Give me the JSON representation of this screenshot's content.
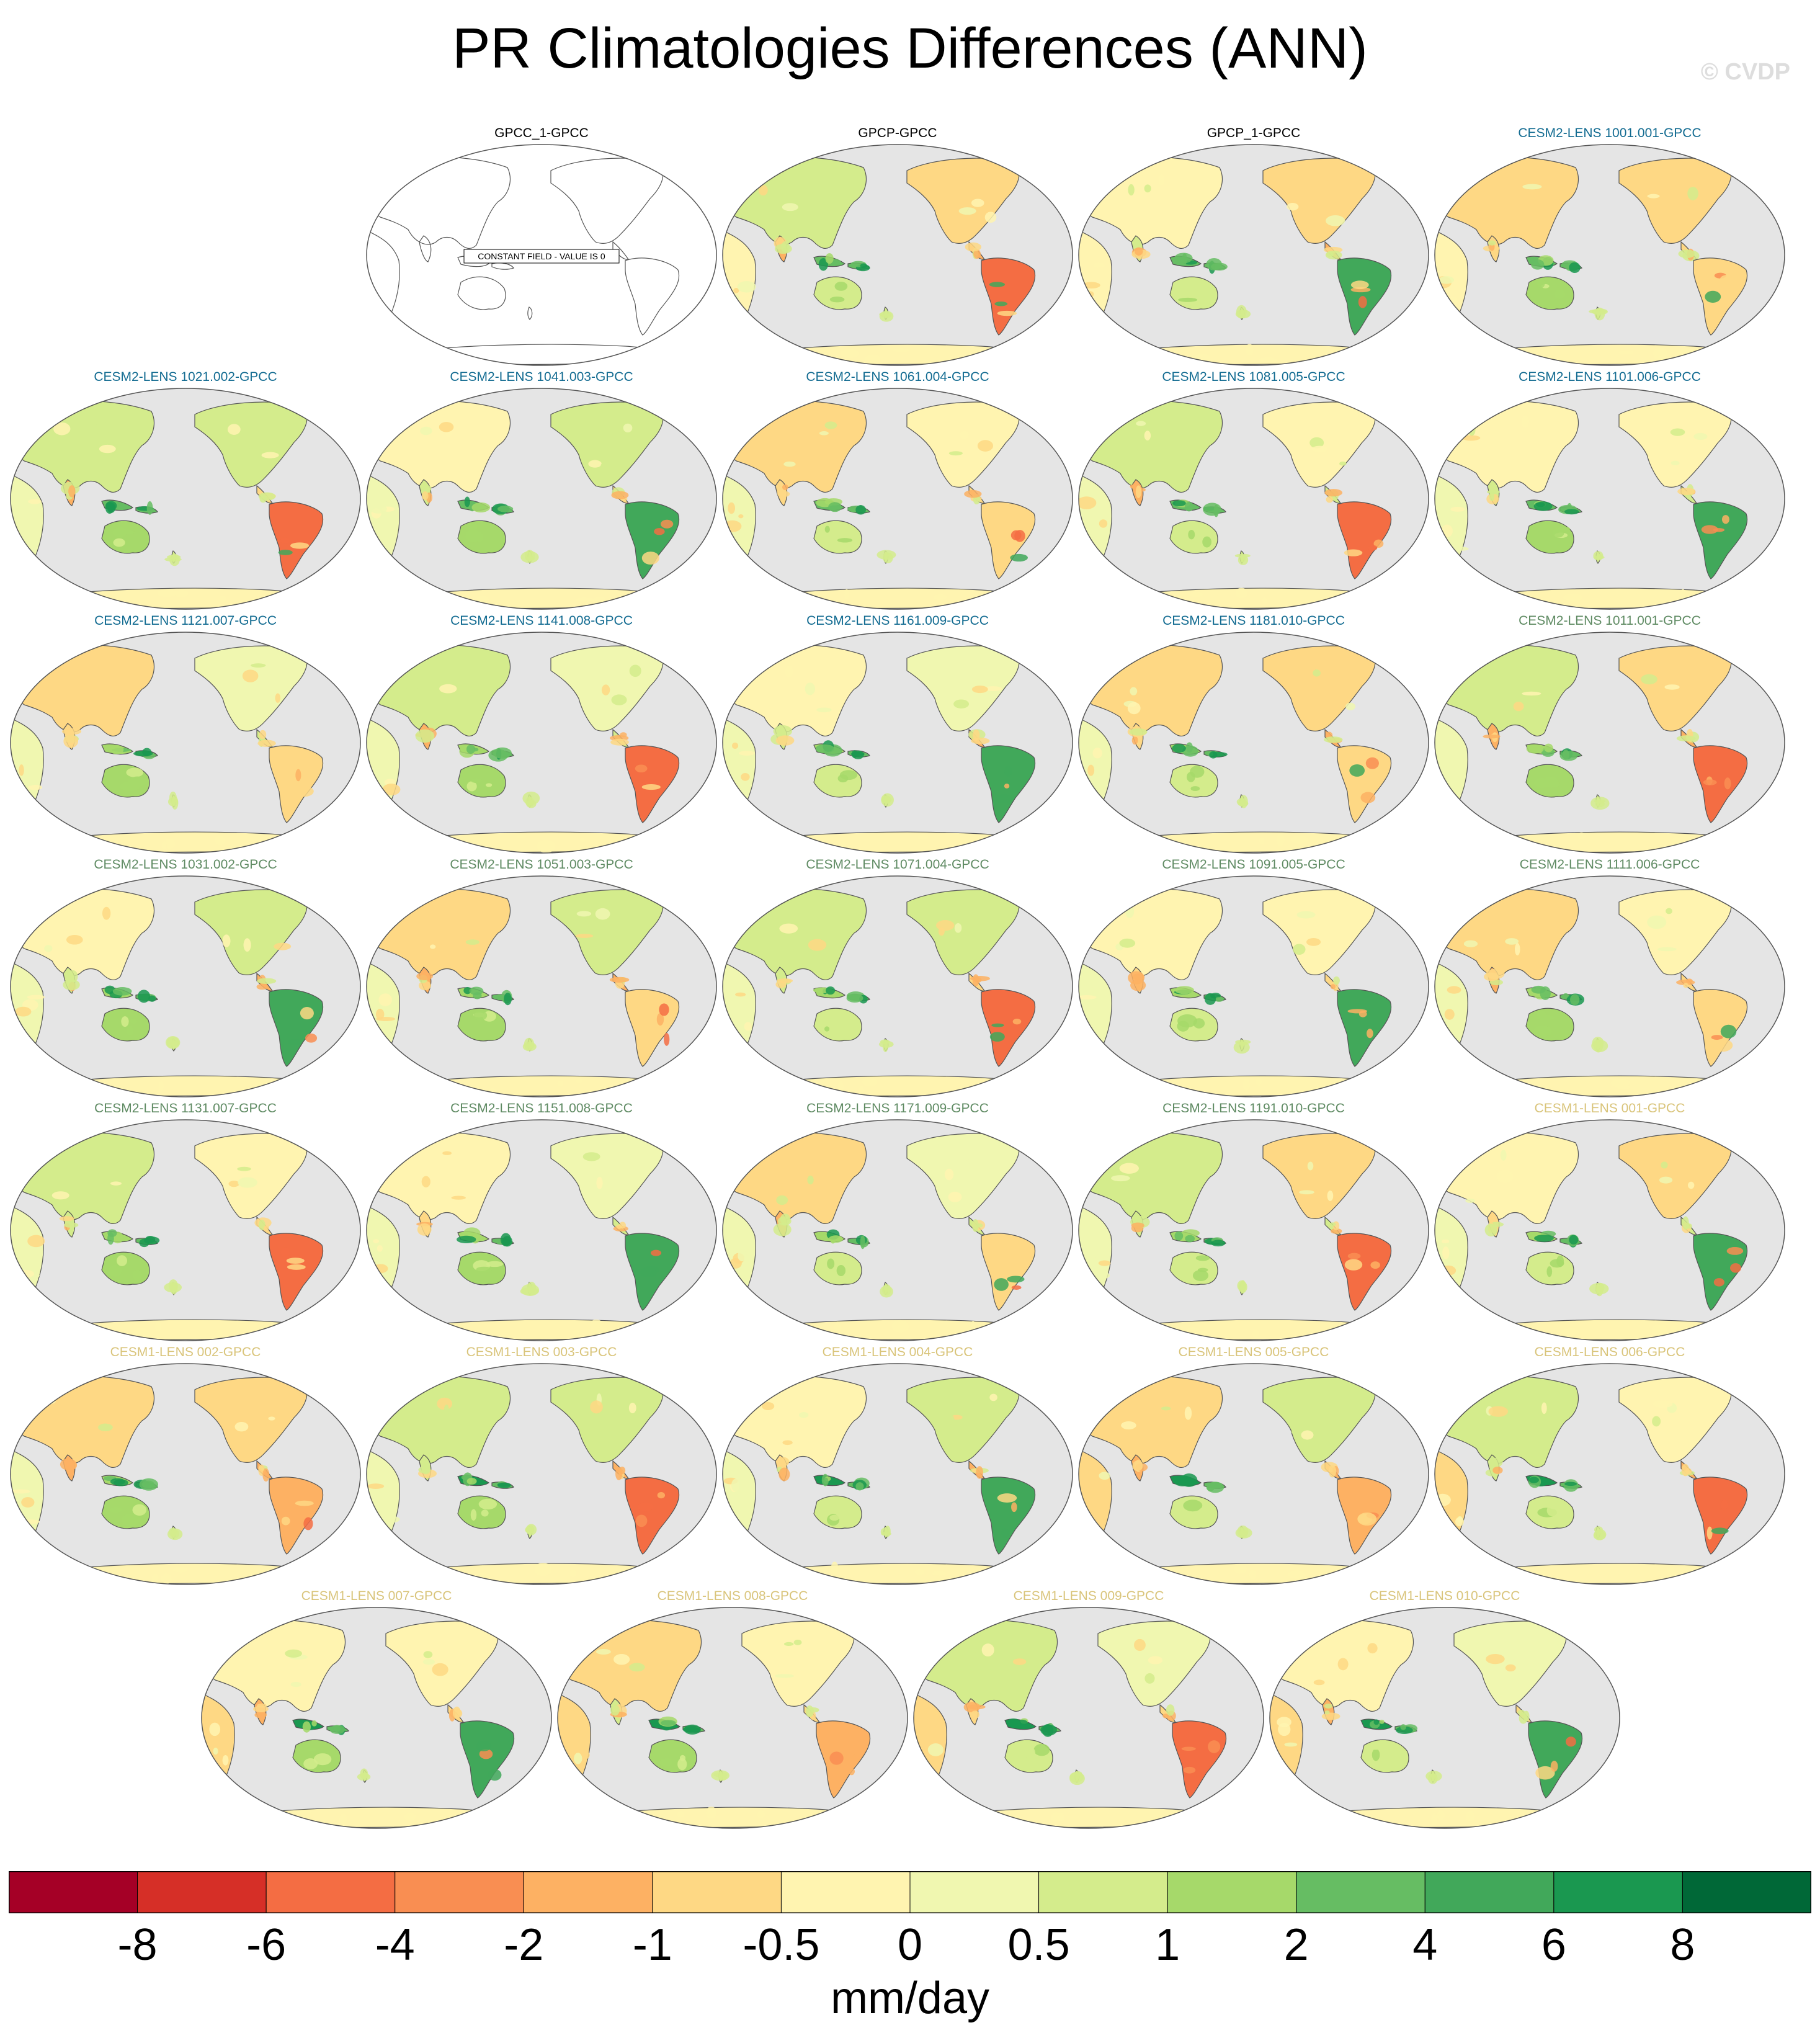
{
  "title": "PR Climatologies Differences (ANN)",
  "watermark": "© CVDP",
  "chart_data": {
    "type": "map-panel-grid",
    "title": "PR Climatologies Differences (ANN)",
    "projection": "robinson, pacific-centered",
    "colorbar": {
      "units": "mm/day",
      "levels": [
        "-8",
        "-6",
        "-4",
        "-2",
        "-1",
        "-0.5",
        "0",
        "0.5",
        "1",
        "2",
        "4",
        "6",
        "8"
      ],
      "colors": [
        "#a50026",
        "#d62f27",
        "#f46d43",
        "#f98e52",
        "#fdb163",
        "#fed884",
        "#fff4b0",
        "#f0f7b0",
        "#d4ec8c",
        "#a6d96a",
        "#66bd63",
        "#41a85a",
        "#1a9850",
        "#006837"
      ]
    },
    "group_colors": {
      "obs": "#000000",
      "cesm2_a": "#126b91",
      "cesm2_b": "#5e8a62",
      "cesm1": "#d9c47a"
    },
    "ocean_color": "#e5e5e5",
    "panels": [
      {
        "title": "GPCC_1-GPCC",
        "group": "obs",
        "constant_field": true,
        "note": "CONSTANT FIELD - VALUE IS 0"
      },
      {
        "title": "GPCP-GPCC",
        "group": "obs"
      },
      {
        "title": "GPCP_1-GPCC",
        "group": "obs"
      },
      {
        "title": "CESM2-LENS 1001.001-GPCC",
        "group": "cesm2_a"
      },
      {
        "title": "CESM2-LENS 1021.002-GPCC",
        "group": "cesm2_a"
      },
      {
        "title": "CESM2-LENS 1041.003-GPCC",
        "group": "cesm2_a"
      },
      {
        "title": "CESM2-LENS 1061.004-GPCC",
        "group": "cesm2_a"
      },
      {
        "title": "CESM2-LENS 1081.005-GPCC",
        "group": "cesm2_a"
      },
      {
        "title": "CESM2-LENS 1101.006-GPCC",
        "group": "cesm2_a"
      },
      {
        "title": "CESM2-LENS 1121.007-GPCC",
        "group": "cesm2_a"
      },
      {
        "title": "CESM2-LENS 1141.008-GPCC",
        "group": "cesm2_a"
      },
      {
        "title": "CESM2-LENS 1161.009-GPCC",
        "group": "cesm2_a"
      },
      {
        "title": "CESM2-LENS 1181.010-GPCC",
        "group": "cesm2_a"
      },
      {
        "title": "CESM2-LENS 1011.001-GPCC",
        "group": "cesm2_b"
      },
      {
        "title": "CESM2-LENS 1031.002-GPCC",
        "group": "cesm2_b"
      },
      {
        "title": "CESM2-LENS 1051.003-GPCC",
        "group": "cesm2_b"
      },
      {
        "title": "CESM2-LENS 1071.004-GPCC",
        "group": "cesm2_b"
      },
      {
        "title": "CESM2-LENS 1091.005-GPCC",
        "group": "cesm2_b"
      },
      {
        "title": "CESM2-LENS 1111.006-GPCC",
        "group": "cesm2_b"
      },
      {
        "title": "CESM2-LENS 1131.007-GPCC",
        "group": "cesm2_b"
      },
      {
        "title": "CESM2-LENS 1151.008-GPCC",
        "group": "cesm2_b"
      },
      {
        "title": "CESM2-LENS 1171.009-GPCC",
        "group": "cesm2_b"
      },
      {
        "title": "CESM2-LENS 1191.010-GPCC",
        "group": "cesm2_b"
      },
      {
        "title": "CESM1-LENS 001-GPCC",
        "group": "cesm1"
      },
      {
        "title": "CESM1-LENS 002-GPCC",
        "group": "cesm1"
      },
      {
        "title": "CESM1-LENS 003-GPCC",
        "group": "cesm1"
      },
      {
        "title": "CESM1-LENS 004-GPCC",
        "group": "cesm1"
      },
      {
        "title": "CESM1-LENS 005-GPCC",
        "group": "cesm1"
      },
      {
        "title": "CESM1-LENS 006-GPCC",
        "group": "cesm1"
      },
      {
        "title": "CESM1-LENS 007-GPCC",
        "group": "cesm1"
      },
      {
        "title": "CESM1-LENS 008-GPCC",
        "group": "cesm1"
      },
      {
        "title": "CESM1-LENS 009-GPCC",
        "group": "cesm1"
      },
      {
        "title": "CESM1-LENS 010-GPCC",
        "group": "cesm1"
      }
    ]
  }
}
